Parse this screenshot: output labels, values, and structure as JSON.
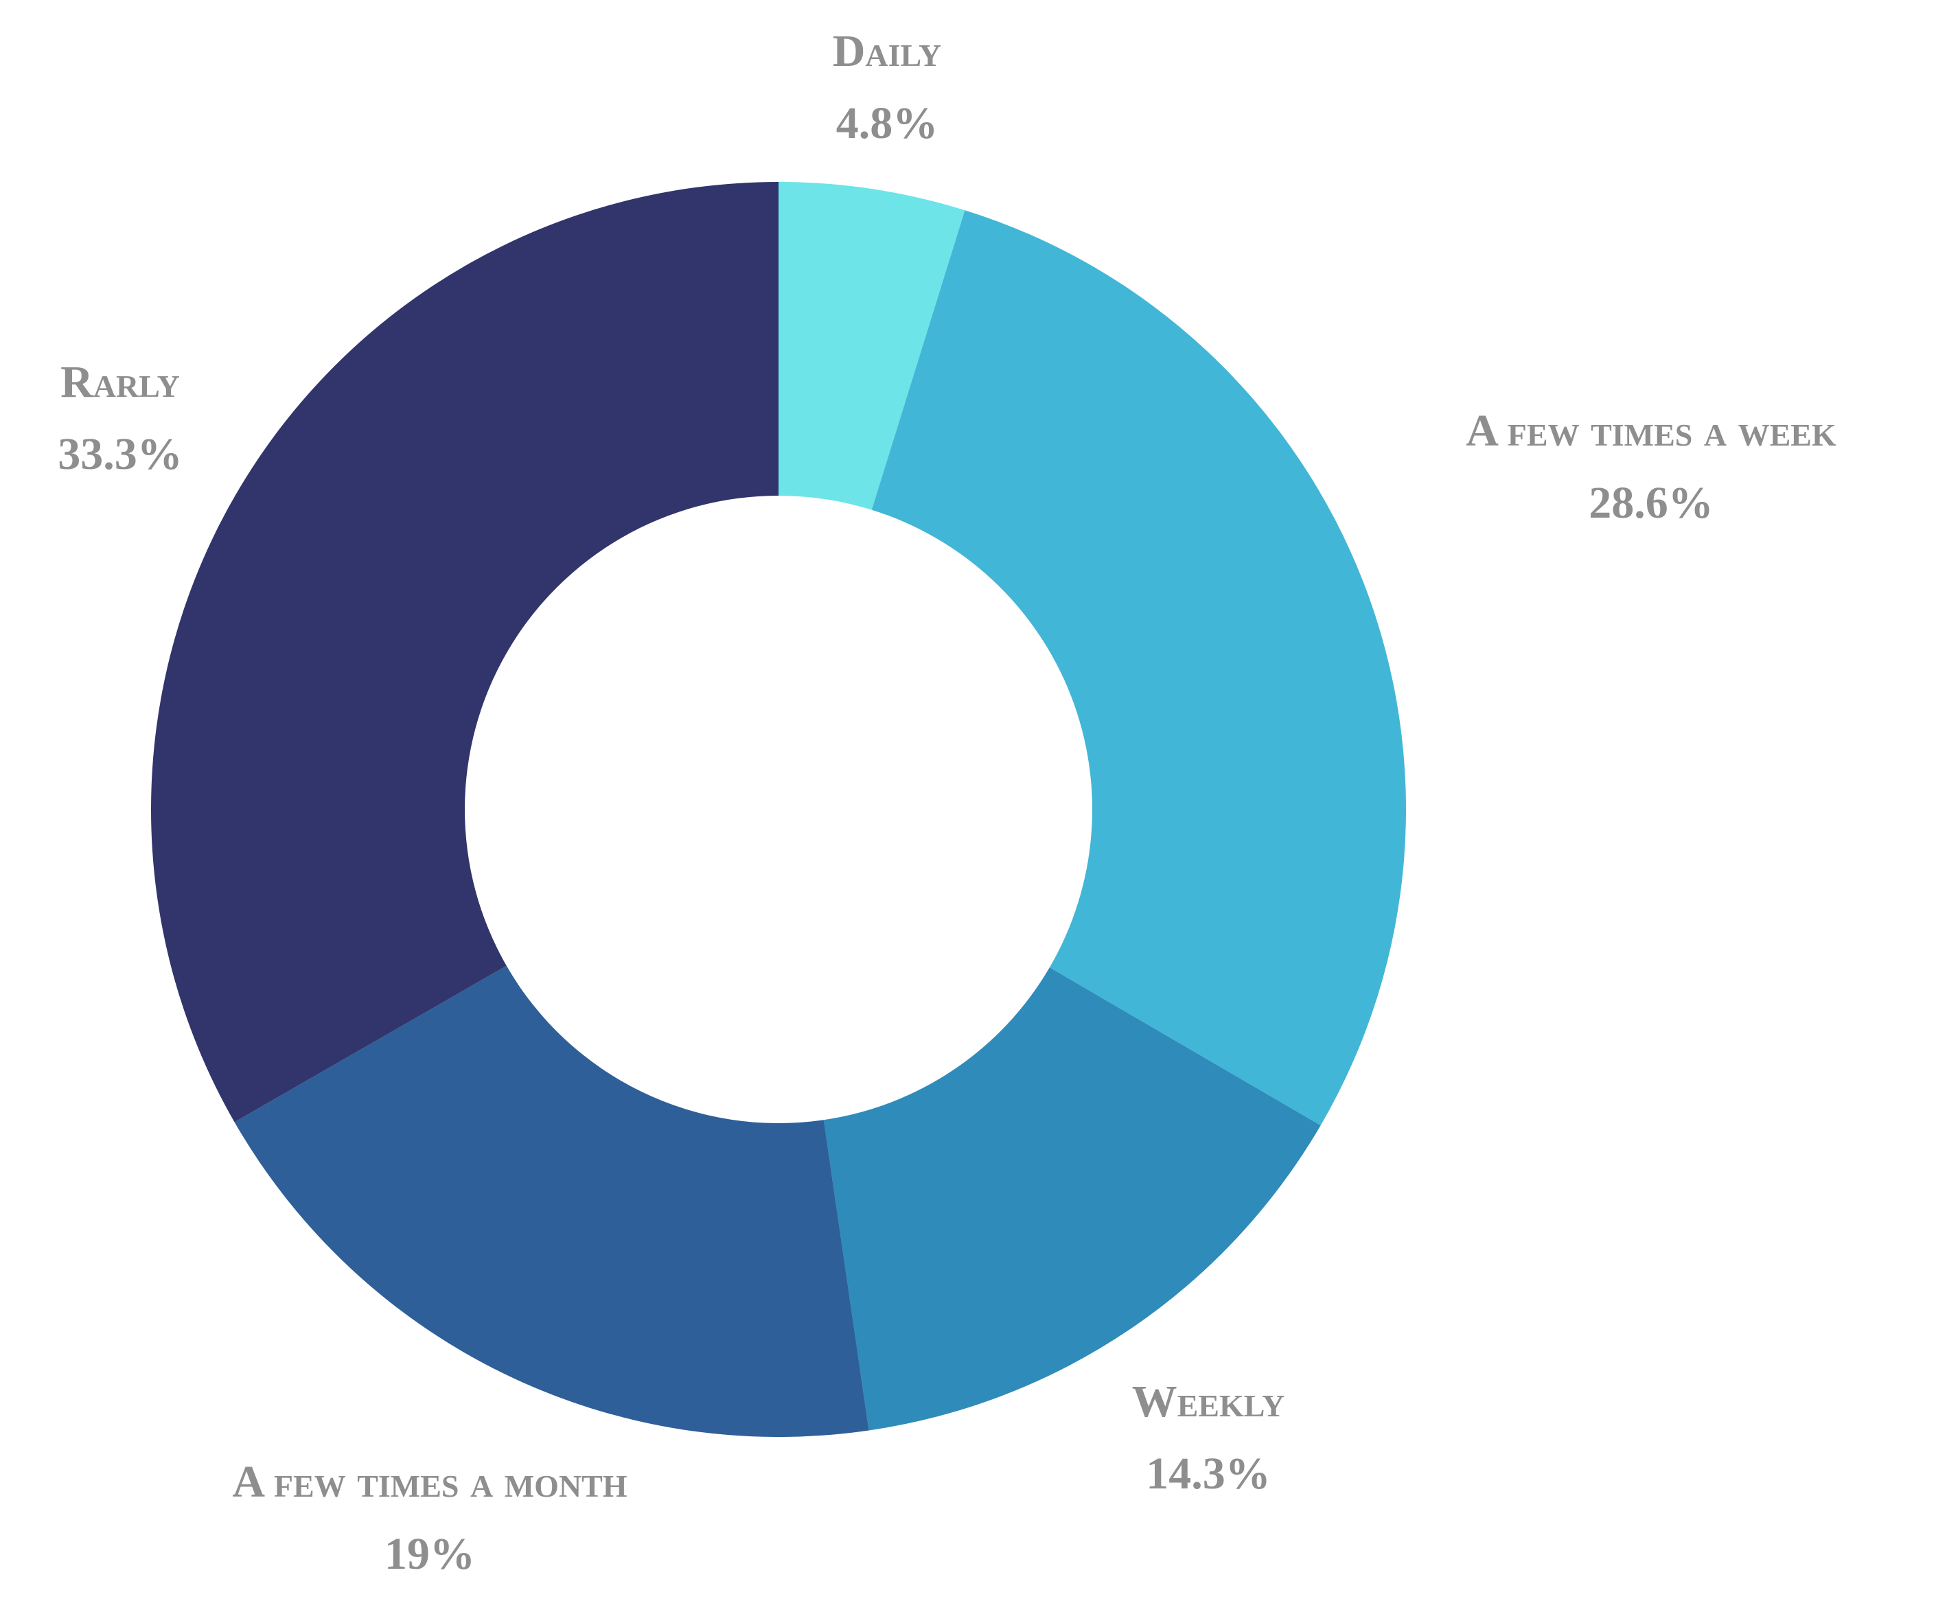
{
  "chart_data": {
    "type": "donut",
    "categories": [
      "Daily",
      "A few times a week",
      "Weekly",
      "A few times a month",
      "Rarly"
    ],
    "values": [
      4.8,
      28.6,
      14.3,
      19,
      33.3
    ],
    "value_labels": [
      "4.8%",
      "28.6%",
      "14.3%",
      "19%",
      "33.3%"
    ],
    "colors": [
      "#6ce4e8",
      "#42b6d6",
      "#2e8bba",
      "#2f5f98",
      "#31356b"
    ]
  }
}
